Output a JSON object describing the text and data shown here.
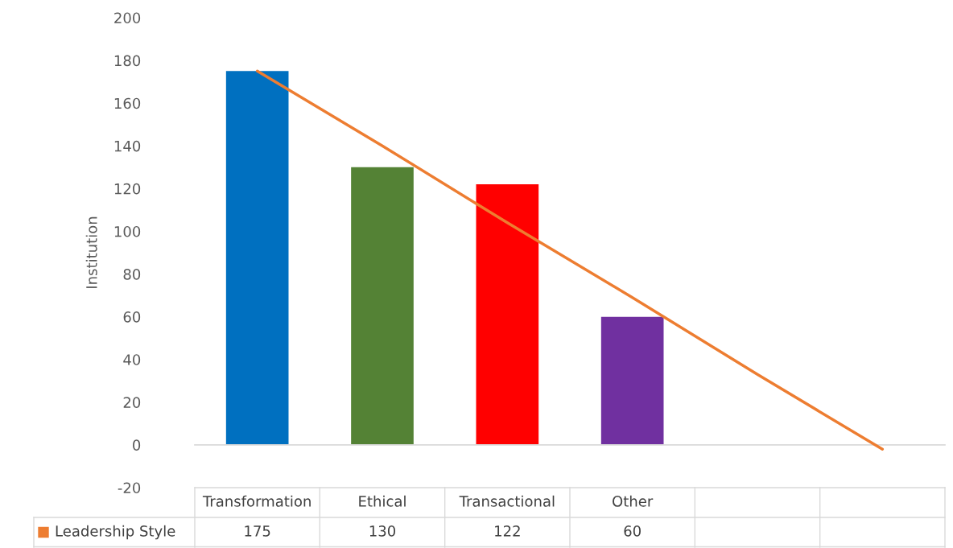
{
  "chart_data": {
    "type": "bar",
    "ylabel": "Institution",
    "categories": [
      "Transformation",
      "Ethical",
      "Transactional",
      "Other",
      null,
      null
    ],
    "series": [
      {
        "name": "Leadership Style",
        "color": "#ed7d31",
        "colors": [
          "#0070c0",
          "#548235",
          "#ff0000",
          "#7030a0",
          "#ed7d31",
          "#ed7d31"
        ],
        "values": [
          175,
          130,
          122,
          60,
          null,
          null
        ],
        "value_labels": [
          "175",
          "130",
          "122",
          "60",
          null,
          null
        ]
      },
      {
        "type": "line",
        "color": "#ed7d31",
        "values": [
          175,
          140,
          104,
          69,
          33,
          -2
        ]
      }
    ],
    "ylim": [
      -20,
      200
    ],
    "yticks": [
      -20,
      0,
      20,
      40,
      60,
      80,
      100,
      120,
      140,
      160,
      180,
      200
    ],
    "legend": false
  }
}
